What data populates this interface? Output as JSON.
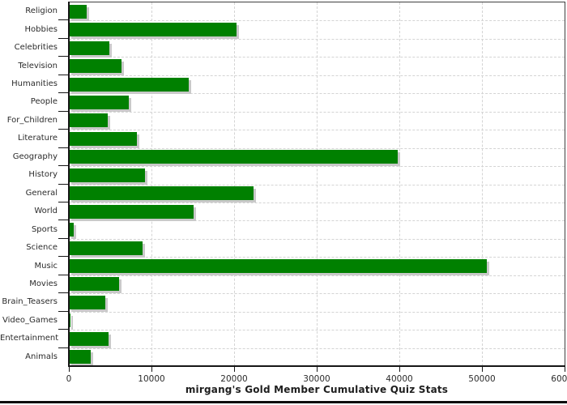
{
  "chart_data": {
    "type": "bar",
    "orientation": "horizontal",
    "title": "mirgang's Gold Member Cumulative Quiz Stats",
    "categories": [
      "Religion",
      "Hobbies",
      "Celebrities",
      "Television",
      "Humanities",
      "People",
      "For_Children",
      "Literature",
      "Geography",
      "History",
      "General",
      "World",
      "Sports",
      "Science",
      "Music",
      "Movies",
      "Brain_Teasers",
      "Video_Games",
      "Entertainment",
      "Animals"
    ],
    "values": [
      2200,
      20300,
      4900,
      6400,
      14500,
      7300,
      4700,
      8200,
      39800,
      9200,
      22400,
      15100,
      550,
      8900,
      50600,
      6100,
      4400,
      200,
      4800,
      2600
    ],
    "xlim": [
      0,
      60000
    ],
    "x_ticks": [
      0,
      10000,
      20000,
      30000,
      40000,
      50000,
      60000
    ],
    "x_tick_labels": [
      "0",
      "10000",
      "20000",
      "30000",
      "40000",
      "50000",
      "60000"
    ],
    "xlabel": "",
    "ylabel": "",
    "legend": "none",
    "grid": "dashed",
    "bar_color": "#008000",
    "bar_shadow_color": "#c9c9c9",
    "grid_color": "#d4d4d4",
    "axis_color": "#161616",
    "frame_color": "#3f3f3f",
    "text_color": "#2b2b2b",
    "background_color": "#ffffff"
  }
}
